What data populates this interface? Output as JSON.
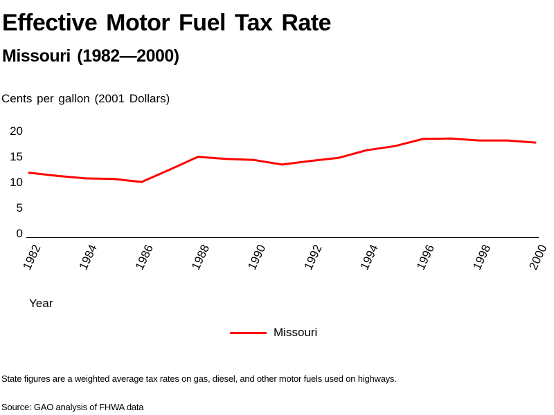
{
  "header": {
    "title": "Effective Motor Fuel Tax Rate",
    "subtitle": "Missouri (1982—2000)"
  },
  "footer": {
    "note": "State figures are a weighted average tax rates on gas, diesel, and other motor fuels used on highways.",
    "source": "Source: GAO analysis of FHWA data"
  },
  "colors": {
    "series": "#ff0000",
    "axis": "#000000",
    "text": "#000000",
    "background": "#ffffff"
  },
  "chart_data": {
    "type": "line",
    "title": "Effective Motor Fuel Tax Rate",
    "subtitle": "Missouri (1982—2000)",
    "xlabel": "Year",
    "ylabel": "Cents per gallon (2001 Dollars)",
    "ylim": [
      0,
      20
    ],
    "xlim": [
      1982,
      2000
    ],
    "yticks": [
      "0",
      "5",
      "10",
      "15",
      "20"
    ],
    "ytick_values": [
      0,
      5,
      10,
      15,
      20
    ],
    "xticks": [
      "1982",
      "1984",
      "1986",
      "1988",
      "1990",
      "1992",
      "1994",
      "1996",
      "1998",
      "2000"
    ],
    "xtick_values": [
      1982,
      1984,
      1986,
      1988,
      1990,
      1992,
      1994,
      1996,
      1998,
      2000
    ],
    "grid": false,
    "legend": "bottom-center",
    "x": [
      1982,
      1983,
      1984,
      1985,
      1986,
      1987,
      1988,
      1989,
      1990,
      1991,
      1992,
      1993,
      1994,
      1995,
      1996,
      1997,
      1998,
      1999,
      2000
    ],
    "series": [
      {
        "name": "Missouri",
        "values": [
          12.6,
          12.0,
          11.5,
          11.4,
          10.8,
          13.2,
          15.7,
          15.3,
          15.1,
          14.2,
          14.9,
          15.5,
          17.0,
          17.8,
          19.2,
          19.3,
          18.9,
          18.9,
          18.5
        ]
      }
    ]
  }
}
